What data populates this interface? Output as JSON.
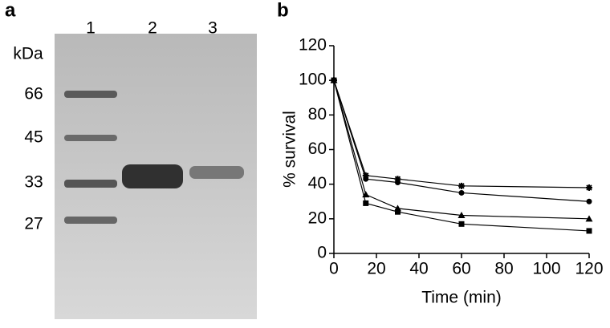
{
  "gel": {
    "panel": "a",
    "unit": "kDa",
    "lanes": [
      "1",
      "2",
      "3"
    ],
    "markers": [
      "66",
      "45",
      "33",
      "27"
    ]
  },
  "chart_data": {
    "type": "line",
    "panel": "b",
    "xlabel": "Time (min)",
    "ylabel": "% survival",
    "x": [
      0,
      15,
      30,
      60,
      120
    ],
    "series": [
      {
        "color": "#000000",
        "marker": "star",
        "values": [
          100,
          45,
          43,
          39,
          38
        ]
      },
      {
        "color": "#000000",
        "marker": "circle",
        "values": [
          100,
          43,
          41,
          35,
          30
        ]
      },
      {
        "color": "#000000",
        "marker": "triangle",
        "values": [
          100,
          34,
          26,
          22,
          20
        ]
      },
      {
        "color": "#000000",
        "marker": "square",
        "values": [
          100,
          29,
          24,
          17,
          13
        ]
      }
    ],
    "xlim": [
      0,
      120
    ],
    "xticks": [
      0,
      20,
      40,
      60,
      80,
      100,
      120
    ],
    "ylim": [
      0,
      120
    ],
    "yticks": [
      0,
      20,
      40,
      60,
      80,
      100,
      120
    ],
    "grid": false
  }
}
